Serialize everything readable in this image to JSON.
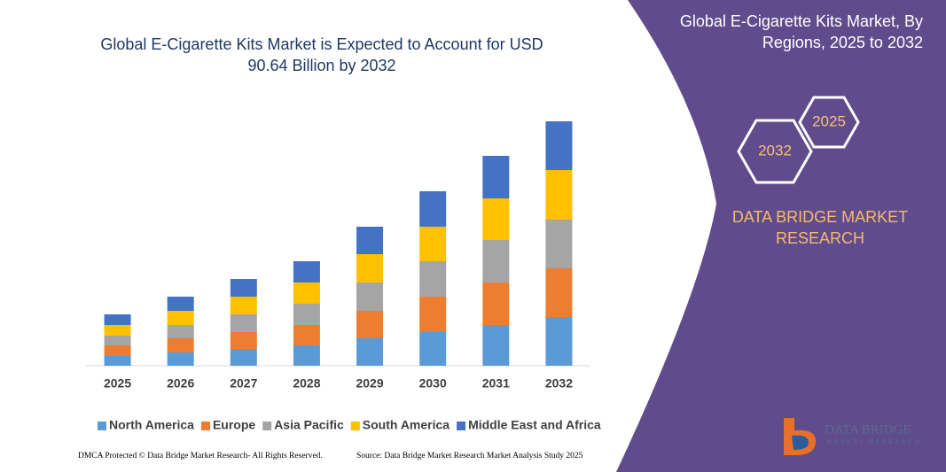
{
  "chart_data": {
    "type": "stacked_bar",
    "title": "Global E-Cigarette Kits Market is Expected to Account for USD 90.64 Billion by 2032",
    "categories": [
      "2025",
      "2026",
      "2027",
      "2028",
      "2029",
      "2030",
      "2031",
      "2032"
    ],
    "series": [
      {
        "name": "North America",
        "color": "#5b9bd5",
        "values": [
          11,
          15,
          19,
          23,
          31,
          38,
          46,
          55
        ]
      },
      {
        "name": "Europe",
        "color": "#ed7d31",
        "values": [
          12,
          16,
          19,
          23,
          31,
          40,
          48,
          55
        ]
      },
      {
        "name": "Asia Pacific",
        "color": "#a5a5a5",
        "values": [
          11,
          15,
          20,
          24,
          32,
          40,
          48,
          55
        ]
      },
      {
        "name": "South America",
        "color": "#ffc000",
        "values": [
          12,
          16,
          20,
          24,
          32,
          39,
          47,
          56
        ]
      },
      {
        "name": "Middle East and Africa",
        "color": "#4472c4",
        "values": [
          12,
          16,
          20,
          24,
          31,
          40,
          48,
          55
        ]
      }
    ],
    "ylim": [
      0,
      280
    ],
    "legend": "bottom"
  },
  "panel": {
    "title": "Global E-Cigarette Kits Market, By Regions, 2025 to 2032",
    "hex_labels": [
      "2032",
      "2025"
    ],
    "brand": "DATA BRIDGE MARKET RESEARCH"
  },
  "logo": {
    "name": "DATA BRIDGE",
    "tagline": "MARKET RESEARCH"
  },
  "footer": {
    "left": "DMCA Protected © Data Bridge Market Research- All Rights Reserved.",
    "right": "Source: Data Bridge Market Research Market Analysis Study 2025"
  }
}
